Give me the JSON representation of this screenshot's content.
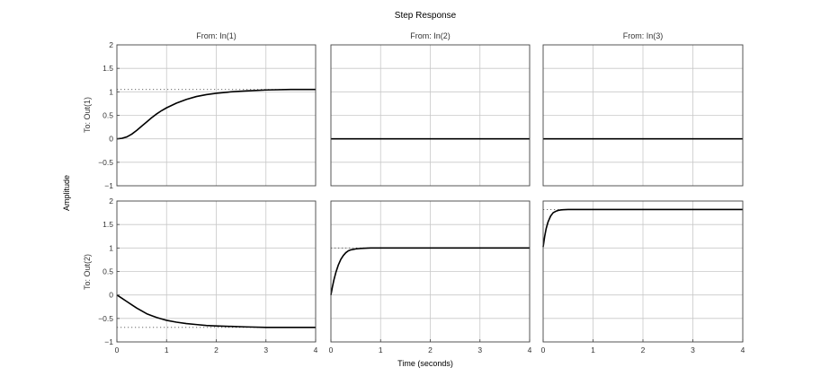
{
  "chart_data": {
    "type": "line",
    "title": "Step Response",
    "xlabel": "Time (seconds)",
    "ylabel": "Amplitude",
    "grid": true,
    "column_titles": [
      "From: In(1)",
      "From: In(2)",
      "From: In(3)"
    ],
    "row_titles": [
      "To: Out(1)",
      "To: Out(2)"
    ],
    "xlim": [
      0,
      4
    ],
    "x_ticks": [
      "0",
      "1",
      "2",
      "3",
      "4"
    ],
    "rows": [
      {
        "ylim": [
          -1,
          2
        ],
        "y_ticks": [
          "2",
          "1.5",
          "1",
          "0.5",
          "0",
          "−0.5",
          "−1"
        ],
        "cells": [
          {
            "steady_state": 1.05,
            "series": [
              {
                "x": [
                  0,
                  0.1,
                  0.2,
                  0.3,
                  0.4,
                  0.5,
                  0.6,
                  0.7,
                  0.8,
                  0.9,
                  1.0,
                  1.2,
                  1.4,
                  1.6,
                  1.8,
                  2.0,
                  2.3,
                  2.6,
                  3.0,
                  3.5,
                  4.0
                ],
                "y": [
                  0,
                  0.01,
                  0.04,
                  0.1,
                  0.18,
                  0.27,
                  0.36,
                  0.45,
                  0.53,
                  0.6,
                  0.66,
                  0.76,
                  0.84,
                  0.9,
                  0.94,
                  0.97,
                  1.0,
                  1.02,
                  1.04,
                  1.05,
                  1.05
                ]
              }
            ]
          },
          {
            "steady_state": null,
            "series": [
              {
                "x": [
                  0,
                  4
                ],
                "y": [
                  0,
                  0
                ]
              }
            ]
          },
          {
            "steady_state": null,
            "series": [
              {
                "x": [
                  0,
                  4
                ],
                "y": [
                  0,
                  0
                ]
              }
            ]
          }
        ]
      },
      {
        "ylim": [
          -1,
          2
        ],
        "y_ticks": [
          "2",
          "1.5",
          "1",
          "0.5",
          "0",
          "−0.5",
          "−1"
        ],
        "cells": [
          {
            "steady_state": -0.69,
            "series": [
              {
                "x": [
                  0,
                  0.1,
                  0.2,
                  0.3,
                  0.4,
                  0.5,
                  0.6,
                  0.7,
                  0.8,
                  0.9,
                  1.0,
                  1.2,
                  1.4,
                  1.6,
                  1.8,
                  2.0,
                  2.3,
                  2.6,
                  3.0,
                  3.5,
                  4.0
                ],
                "y": [
                  0,
                  -0.07,
                  -0.14,
                  -0.21,
                  -0.28,
                  -0.34,
                  -0.4,
                  -0.44,
                  -0.48,
                  -0.51,
                  -0.54,
                  -0.58,
                  -0.61,
                  -0.63,
                  -0.65,
                  -0.66,
                  -0.67,
                  -0.68,
                  -0.69,
                  -0.69,
                  -0.69
                ]
              }
            ]
          },
          {
            "steady_state": 1.0,
            "series": [
              {
                "x": [
                  0,
                  0.03,
                  0.06,
                  0.1,
                  0.15,
                  0.2,
                  0.25,
                  0.3,
                  0.35,
                  0.4,
                  0.5,
                  0.6,
                  0.8,
                  1.0,
                  2.0,
                  3.0,
                  4.0
                ],
                "y": [
                  0,
                  0.17,
                  0.32,
                  0.48,
                  0.64,
                  0.76,
                  0.84,
                  0.9,
                  0.94,
                  0.96,
                  0.98,
                  0.99,
                  1.0,
                  1.0,
                  1.0,
                  1.0,
                  1.0
                ]
              }
            ]
          },
          {
            "steady_state": 1.82,
            "series": [
              {
                "x": [
                  0,
                  0.03,
                  0.06,
                  0.1,
                  0.15,
                  0.2,
                  0.25,
                  0.3,
                  0.35,
                  0.4,
                  0.5,
                  0.6,
                  0.8,
                  1.0,
                  2.0,
                  3.0,
                  4.0
                ],
                "y": [
                  1.02,
                  1.24,
                  1.41,
                  1.56,
                  1.68,
                  1.75,
                  1.78,
                  1.8,
                  1.81,
                  1.815,
                  1.82,
                  1.82,
                  1.82,
                  1.82,
                  1.82,
                  1.82,
                  1.82
                ]
              }
            ]
          }
        ]
      }
    ]
  }
}
